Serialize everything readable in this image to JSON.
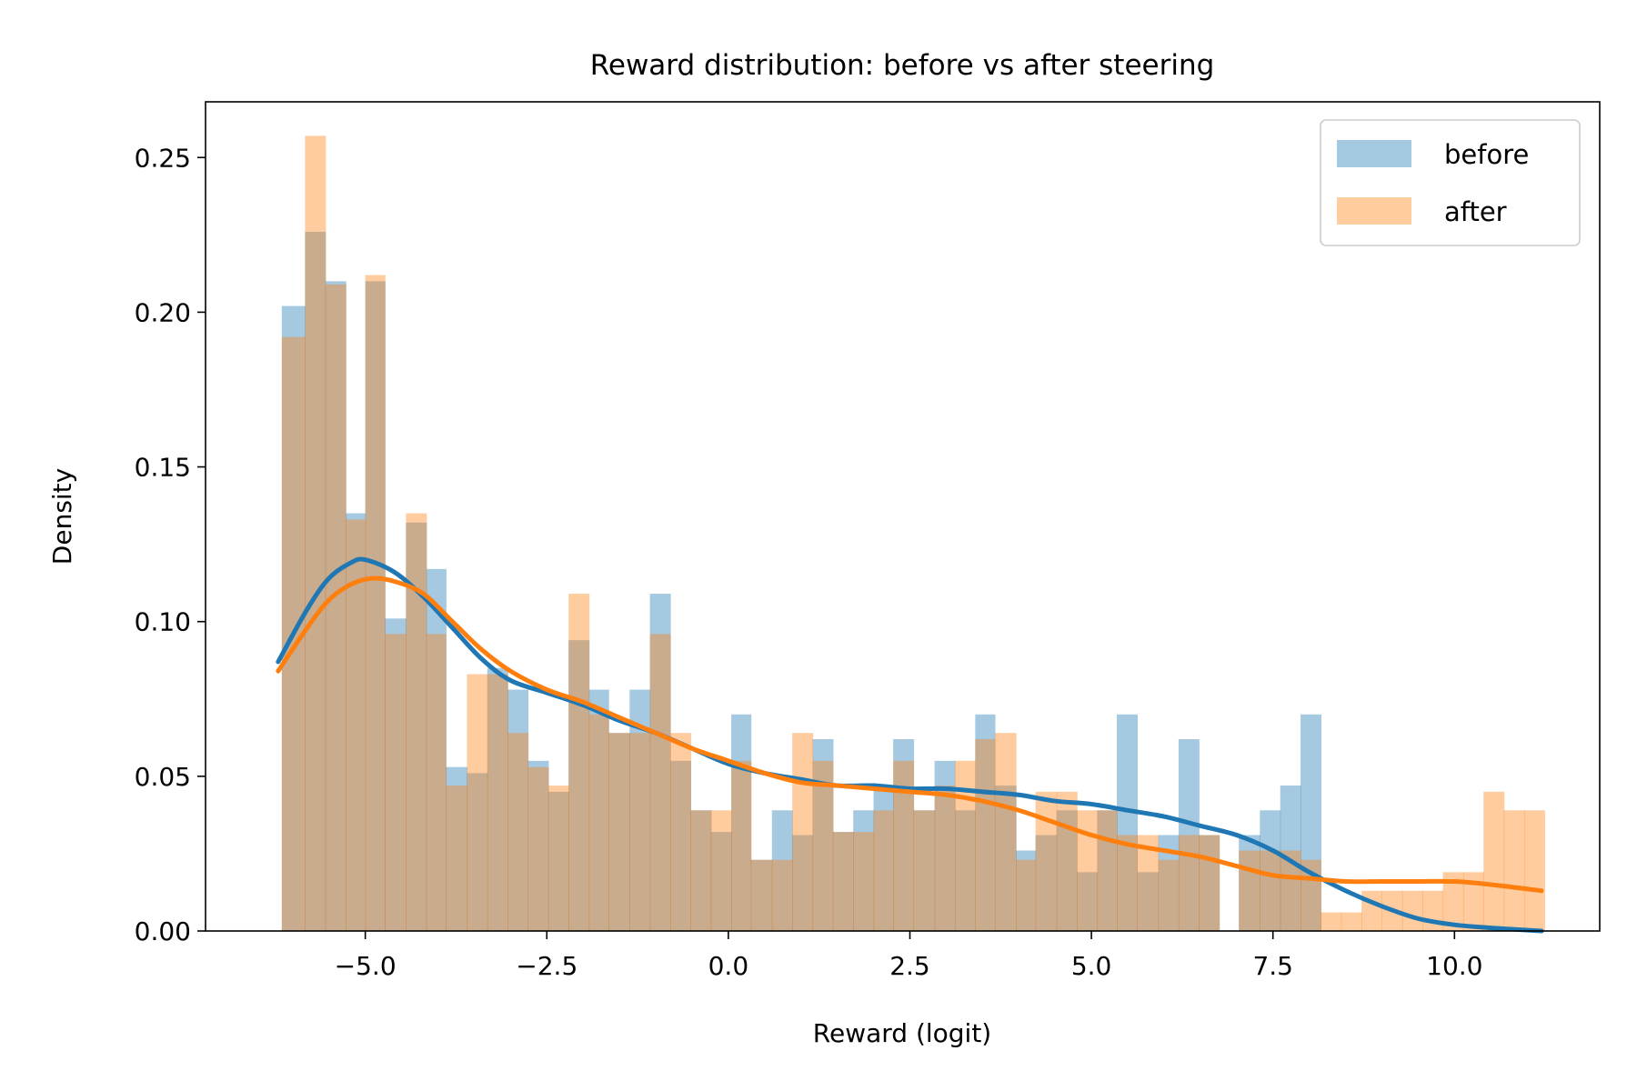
{
  "chart_data": {
    "type": "histogram",
    "title": "Reward distribution: before vs after steering",
    "xlabel": "Reward (logit)",
    "ylabel": "Density",
    "xlim": [
      -7.2,
      12.0
    ],
    "ylim": [
      0,
      0.268
    ],
    "x_ticks": [
      {
        "value": -5.0,
        "label": "−5.0"
      },
      {
        "value": -2.5,
        "label": "−2.5"
      },
      {
        "value": 0.0,
        "label": "0.0"
      },
      {
        "value": 2.5,
        "label": "2.5"
      },
      {
        "value": 5.0,
        "label": "5.0"
      },
      {
        "value": 7.5,
        "label": "7.5"
      },
      {
        "value": 10.0,
        "label": "10.0"
      }
    ],
    "y_ticks": [
      {
        "value": 0.0,
        "label": "0.00"
      },
      {
        "value": 0.05,
        "label": "0.05"
      },
      {
        "value": 0.1,
        "label": "0.10"
      },
      {
        "value": 0.15,
        "label": "0.15"
      },
      {
        "value": 0.2,
        "label": "0.20"
      },
      {
        "value": 0.25,
        "label": "0.25"
      }
    ],
    "grid": false,
    "legend": {
      "position": "top-right",
      "entries": [
        "before",
        "after"
      ]
    },
    "histograms": [
      {
        "name": "before",
        "color": "#1f77b4",
        "alpha": 0.4,
        "bins": [
          {
            "x0": -6.15,
            "x1": -5.83,
            "y": 0.202
          },
          {
            "x0": -5.83,
            "x1": -5.55,
            "y": 0.226
          },
          {
            "x0": -5.55,
            "x1": -5.27,
            "y": 0.21
          },
          {
            "x0": -5.27,
            "x1": -5.0,
            "y": 0.135
          },
          {
            "x0": -5.0,
            "x1": -4.73,
            "y": 0.21
          },
          {
            "x0": -4.73,
            "x1": -4.44,
            "y": 0.101
          },
          {
            "x0": -4.44,
            "x1": -4.16,
            "y": 0.132
          },
          {
            "x0": -4.16,
            "x1": -3.89,
            "y": 0.117
          },
          {
            "x0": -3.89,
            "x1": -3.6,
            "y": 0.053
          },
          {
            "x0": -3.6,
            "x1": -3.32,
            "y": 0.051
          },
          {
            "x0": -3.32,
            "x1": -3.04,
            "y": 0.085
          },
          {
            "x0": -3.04,
            "x1": -2.76,
            "y": 0.078
          },
          {
            "x0": -2.76,
            "x1": -2.48,
            "y": 0.055
          },
          {
            "x0": -2.48,
            "x1": -2.2,
            "y": 0.045
          },
          {
            "x0": -2.2,
            "x1": -1.92,
            "y": 0.094
          },
          {
            "x0": -1.92,
            "x1": -1.65,
            "y": 0.078
          },
          {
            "x0": -1.65,
            "x1": -1.36,
            "y": 0.064
          },
          {
            "x0": -1.36,
            "x1": -1.08,
            "y": 0.078
          },
          {
            "x0": -1.08,
            "x1": -0.8,
            "y": 0.109
          },
          {
            "x0": -0.8,
            "x1": -0.52,
            "y": 0.055
          },
          {
            "x0": -0.52,
            "x1": -0.24,
            "y": 0.039
          },
          {
            "x0": -0.24,
            "x1": 0.04,
            "y": 0.032
          },
          {
            "x0": 0.04,
            "x1": 0.31,
            "y": 0.07
          },
          {
            "x0": 0.31,
            "x1": 0.6,
            "y": 0.023
          },
          {
            "x0": 0.6,
            "x1": 0.88,
            "y": 0.039
          },
          {
            "x0": 0.88,
            "x1": 1.16,
            "y": 0.031
          },
          {
            "x0": 1.16,
            "x1": 1.44,
            "y": 0.062
          },
          {
            "x0": 1.44,
            "x1": 1.72,
            "y": 0.032
          },
          {
            "x0": 1.72,
            "x1": 2.0,
            "y": 0.039
          },
          {
            "x0": 2.0,
            "x1": 2.27,
            "y": 0.047
          },
          {
            "x0": 2.27,
            "x1": 2.55,
            "y": 0.062
          },
          {
            "x0": 2.55,
            "x1": 2.84,
            "y": 0.039
          },
          {
            "x0": 2.84,
            "x1": 3.12,
            "y": 0.055
          },
          {
            "x0": 3.12,
            "x1": 3.4,
            "y": 0.039
          },
          {
            "x0": 3.4,
            "x1": 3.67,
            "y": 0.07
          },
          {
            "x0": 3.67,
            "x1": 3.96,
            "y": 0.047
          },
          {
            "x0": 3.96,
            "x1": 4.23,
            "y": 0.026
          },
          {
            "x0": 4.23,
            "x1": 4.52,
            "y": 0.031
          },
          {
            "x0": 4.52,
            "x1": 4.8,
            "y": 0.039
          },
          {
            "x0": 4.8,
            "x1": 5.08,
            "y": 0.019
          },
          {
            "x0": 5.08,
            "x1": 5.35,
            "y": 0.039
          },
          {
            "x0": 5.35,
            "x1": 5.63,
            "y": 0.07
          },
          {
            "x0": 5.63,
            "x1": 5.92,
            "y": 0.019
          },
          {
            "x0": 5.92,
            "x1": 6.2,
            "y": 0.031
          },
          {
            "x0": 6.2,
            "x1": 6.48,
            "y": 0.062
          },
          {
            "x0": 6.48,
            "x1": 6.76,
            "y": 0.031
          },
          {
            "x0": 6.76,
            "x1": 7.03,
            "y": 0.0
          },
          {
            "x0": 7.03,
            "x1": 7.32,
            "y": 0.031
          },
          {
            "x0": 7.32,
            "x1": 7.6,
            "y": 0.039
          },
          {
            "x0": 7.6,
            "x1": 7.88,
            "y": 0.047
          },
          {
            "x0": 7.88,
            "x1": 8.16,
            "y": 0.07
          }
        ]
      },
      {
        "name": "after",
        "color": "#ff7f0e",
        "alpha": 0.4,
        "bins": [
          {
            "x0": -6.15,
            "x1": -5.83,
            "y": 0.192
          },
          {
            "x0": -5.83,
            "x1": -5.55,
            "y": 0.257
          },
          {
            "x0": -5.55,
            "x1": -5.27,
            "y": 0.209
          },
          {
            "x0": -5.27,
            "x1": -5.0,
            "y": 0.133
          },
          {
            "x0": -5.0,
            "x1": -4.73,
            "y": 0.212
          },
          {
            "x0": -4.73,
            "x1": -4.44,
            "y": 0.096
          },
          {
            "x0": -4.44,
            "x1": -4.16,
            "y": 0.135
          },
          {
            "x0": -4.16,
            "x1": -3.89,
            "y": 0.096
          },
          {
            "x0": -3.89,
            "x1": -3.6,
            "y": 0.047
          },
          {
            "x0": -3.6,
            "x1": -3.32,
            "y": 0.083
          },
          {
            "x0": -3.32,
            "x1": -3.04,
            "y": 0.083
          },
          {
            "x0": -3.04,
            "x1": -2.76,
            "y": 0.064
          },
          {
            "x0": -2.76,
            "x1": -2.48,
            "y": 0.053
          },
          {
            "x0": -2.48,
            "x1": -2.2,
            "y": 0.047
          },
          {
            "x0": -2.2,
            "x1": -1.92,
            "y": 0.109
          },
          {
            "x0": -1.92,
            "x1": -1.65,
            "y": 0.07
          },
          {
            "x0": -1.65,
            "x1": -1.36,
            "y": 0.064
          },
          {
            "x0": -1.36,
            "x1": -1.08,
            "y": 0.064
          },
          {
            "x0": -1.08,
            "x1": -0.8,
            "y": 0.096
          },
          {
            "x0": -0.8,
            "x1": -0.52,
            "y": 0.064
          },
          {
            "x0": -0.52,
            "x1": -0.24,
            "y": 0.039
          },
          {
            "x0": -0.24,
            "x1": 0.04,
            "y": 0.039
          },
          {
            "x0": 0.04,
            "x1": 0.31,
            "y": 0.055
          },
          {
            "x0": 0.31,
            "x1": 0.6,
            "y": 0.023
          },
          {
            "x0": 0.6,
            "x1": 0.88,
            "y": 0.023
          },
          {
            "x0": 0.88,
            "x1": 1.16,
            "y": 0.064
          },
          {
            "x0": 1.16,
            "x1": 1.44,
            "y": 0.055
          },
          {
            "x0": 1.44,
            "x1": 1.72,
            "y": 0.032
          },
          {
            "x0": 1.72,
            "x1": 2.0,
            "y": 0.032
          },
          {
            "x0": 2.0,
            "x1": 2.27,
            "y": 0.039
          },
          {
            "x0": 2.27,
            "x1": 2.55,
            "y": 0.055
          },
          {
            "x0": 2.55,
            "x1": 2.84,
            "y": 0.039
          },
          {
            "x0": 2.84,
            "x1": 3.12,
            "y": 0.047
          },
          {
            "x0": 3.12,
            "x1": 3.4,
            "y": 0.055
          },
          {
            "x0": 3.4,
            "x1": 3.67,
            "y": 0.062
          },
          {
            "x0": 3.67,
            "x1": 3.96,
            "y": 0.064
          },
          {
            "x0": 3.96,
            "x1": 4.23,
            "y": 0.023
          },
          {
            "x0": 4.23,
            "x1": 4.52,
            "y": 0.045
          },
          {
            "x0": 4.52,
            "x1": 4.8,
            "y": 0.045
          },
          {
            "x0": 4.8,
            "x1": 5.08,
            "y": 0.039
          },
          {
            "x0": 5.08,
            "x1": 5.35,
            "y": 0.039
          },
          {
            "x0": 5.35,
            "x1": 5.63,
            "y": 0.031
          },
          {
            "x0": 5.63,
            "x1": 5.92,
            "y": 0.031
          },
          {
            "x0": 5.92,
            "x1": 6.2,
            "y": 0.023
          },
          {
            "x0": 6.2,
            "x1": 6.48,
            "y": 0.031
          },
          {
            "x0": 6.48,
            "x1": 6.76,
            "y": 0.031
          },
          {
            "x0": 6.76,
            "x1": 7.03,
            "y": 0.0
          },
          {
            "x0": 7.03,
            "x1": 7.32,
            "y": 0.026
          },
          {
            "x0": 7.32,
            "x1": 7.6,
            "y": 0.026
          },
          {
            "x0": 7.6,
            "x1": 7.88,
            "y": 0.026
          },
          {
            "x0": 7.88,
            "x1": 8.16,
            "y": 0.023
          },
          {
            "x0": 8.16,
            "x1": 8.44,
            "y": 0.006
          },
          {
            "x0": 8.44,
            "x1": 8.72,
            "y": 0.006
          },
          {
            "x0": 8.72,
            "x1": 9.0,
            "y": 0.013
          },
          {
            "x0": 9.0,
            "x1": 9.28,
            "y": 0.013
          },
          {
            "x0": 9.28,
            "x1": 9.56,
            "y": 0.013
          },
          {
            "x0": 9.56,
            "x1": 9.84,
            "y": 0.013
          },
          {
            "x0": 9.84,
            "x1": 10.12,
            "y": 0.019
          },
          {
            "x0": 10.12,
            "x1": 10.4,
            "y": 0.019
          },
          {
            "x0": 10.4,
            "x1": 10.68,
            "y": 0.045
          },
          {
            "x0": 10.68,
            "x1": 10.96,
            "y": 0.039
          },
          {
            "x0": 10.96,
            "x1": 11.24,
            "y": 0.039
          }
        ]
      }
    ],
    "kde": [
      {
        "name": "before",
        "color": "#1f77b4",
        "points": [
          [
            -6.2,
            0.087
          ],
          [
            -5.8,
            0.104
          ],
          [
            -5.5,
            0.114
          ],
          [
            -5.2,
            0.119
          ],
          [
            -5.0,
            0.12
          ],
          [
            -4.6,
            0.116
          ],
          [
            -4.2,
            0.108
          ],
          [
            -3.8,
            0.098
          ],
          [
            -3.4,
            0.088
          ],
          [
            -3.0,
            0.081
          ],
          [
            -2.5,
            0.077
          ],
          [
            -2.0,
            0.073
          ],
          [
            -1.5,
            0.068
          ],
          [
            -1.0,
            0.064
          ],
          [
            -0.5,
            0.059
          ],
          [
            0.0,
            0.054
          ],
          [
            0.5,
            0.051
          ],
          [
            1.0,
            0.049
          ],
          [
            1.5,
            0.047
          ],
          [
            2.0,
            0.047
          ],
          [
            2.5,
            0.046
          ],
          [
            3.0,
            0.046
          ],
          [
            3.5,
            0.045
          ],
          [
            4.0,
            0.044
          ],
          [
            4.5,
            0.042
          ],
          [
            5.0,
            0.041
          ],
          [
            5.5,
            0.039
          ],
          [
            6.0,
            0.037
          ],
          [
            6.5,
            0.034
          ],
          [
            7.0,
            0.031
          ],
          [
            7.5,
            0.026
          ],
          [
            8.0,
            0.019
          ],
          [
            8.5,
            0.013
          ],
          [
            9.0,
            0.008
          ],
          [
            9.5,
            0.004
          ],
          [
            10.0,
            0.002
          ],
          [
            10.5,
            0.001
          ],
          [
            11.2,
            0.0
          ]
        ]
      },
      {
        "name": "after",
        "color": "#ff7f0e",
        "points": [
          [
            -6.2,
            0.084
          ],
          [
            -5.8,
            0.098
          ],
          [
            -5.5,
            0.107
          ],
          [
            -5.2,
            0.112
          ],
          [
            -4.9,
            0.114
          ],
          [
            -4.6,
            0.113
          ],
          [
            -4.2,
            0.109
          ],
          [
            -3.8,
            0.1
          ],
          [
            -3.4,
            0.091
          ],
          [
            -3.0,
            0.084
          ],
          [
            -2.5,
            0.078
          ],
          [
            -2.0,
            0.074
          ],
          [
            -1.5,
            0.069
          ],
          [
            -1.0,
            0.064
          ],
          [
            -0.5,
            0.059
          ],
          [
            0.0,
            0.055
          ],
          [
            0.5,
            0.051
          ],
          [
            1.0,
            0.048
          ],
          [
            1.5,
            0.047
          ],
          [
            2.0,
            0.046
          ],
          [
            2.5,
            0.045
          ],
          [
            3.0,
            0.044
          ],
          [
            3.5,
            0.042
          ],
          [
            4.0,
            0.039
          ],
          [
            4.5,
            0.035
          ],
          [
            5.0,
            0.031
          ],
          [
            5.5,
            0.028
          ],
          [
            6.0,
            0.026
          ],
          [
            6.5,
            0.024
          ],
          [
            7.0,
            0.021
          ],
          [
            7.5,
            0.018
          ],
          [
            8.0,
            0.017
          ],
          [
            8.5,
            0.016
          ],
          [
            9.0,
            0.016
          ],
          [
            9.5,
            0.016
          ],
          [
            10.0,
            0.016
          ],
          [
            10.5,
            0.015
          ],
          [
            11.2,
            0.013
          ]
        ]
      }
    ]
  }
}
